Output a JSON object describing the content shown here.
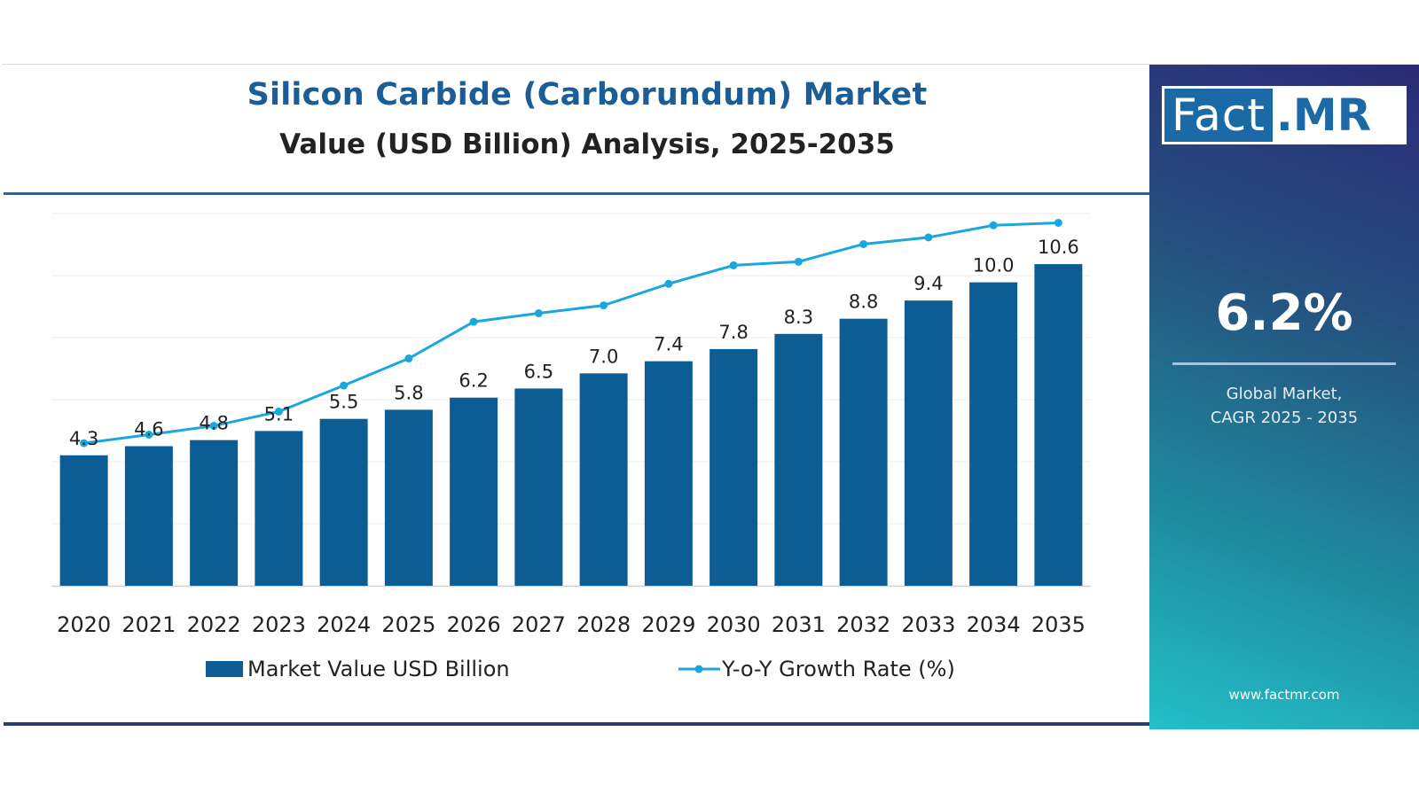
{
  "header": {
    "title": "Silicon Carbide (Carborundum) Market",
    "subtitle": "Value (USD Billion) Analysis, 2025-2035"
  },
  "chart_data": {
    "type": "bar",
    "categories": [
      "2020",
      "2021",
      "2022",
      "2023",
      "2024",
      "2025",
      "2026",
      "2027",
      "2028",
      "2029",
      "2030",
      "2031",
      "2032",
      "2033",
      "2034",
      "2035"
    ],
    "series": [
      {
        "name": "Market Value USD Billion",
        "type": "bar",
        "values": [
          4.3,
          4.6,
          4.8,
          5.1,
          5.5,
          5.8,
          6.2,
          6.5,
          7.0,
          7.4,
          7.8,
          8.3,
          8.8,
          9.4,
          10.0,
          10.6
        ],
        "labels": [
          "4.3",
          "4.6",
          "4.8",
          "5.1",
          "5.5",
          "5.8",
          "6.2",
          "6.5",
          "7.0",
          "7.4",
          "7.8",
          "8.3",
          "8.8",
          "9.4",
          "10.0",
          "10.6"
        ]
      },
      {
        "name": "Y-o-Y Growth Rate (%)",
        "type": "line",
        "values": [
          4.7,
          4.98,
          5.27,
          5.74,
          6.6,
          7.49,
          8.7,
          8.98,
          9.24,
          9.95,
          10.56,
          10.68,
          11.26,
          11.48,
          11.88,
          11.96
        ]
      }
    ],
    "ylim": [
      0,
      12.5
    ],
    "grid": true,
    "legend_position": "bottom",
    "colors": {
      "bar": "#0c5d94",
      "line": "#1aa7de",
      "grid": "#ededed",
      "axis": "#d0d0d0"
    }
  },
  "side_panel": {
    "logo_left": "Fact",
    "logo_right": ".MR",
    "cagr_value": "6.2%",
    "cagr_caption_line1": "Global Market,",
    "cagr_caption_line2": "CAGR 2025 - 2035",
    "website": "www.factmr.com",
    "gradient_colors": [
      "#2b2a78",
      "#25507e",
      "#1e8a9e",
      "#23c0c8"
    ]
  }
}
